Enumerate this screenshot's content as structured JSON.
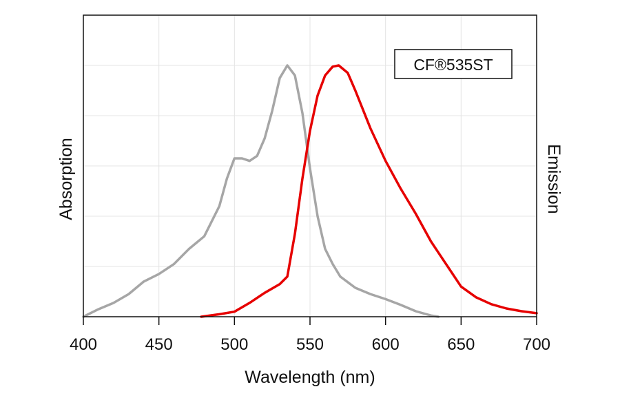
{
  "chart_data": {
    "type": "line",
    "title": "",
    "xlabel": "Wavelength (nm)",
    "ylabel_left": "Absorption",
    "ylabel_right": "Emission",
    "xlim": [
      400,
      700
    ],
    "ylim": [
      0,
      1.2
    ],
    "xticks": [
      400,
      450,
      500,
      550,
      600,
      650,
      700
    ],
    "y_gridlines": [
      0.2,
      0.4,
      0.6,
      0.8,
      1.0
    ],
    "grid": true,
    "legend_box": {
      "text": "CF®535ST",
      "placement": "top-right"
    },
    "series": [
      {
        "key": "absorption",
        "color": "#a6a6a6",
        "x": [
          400,
          410,
          420,
          430,
          440,
          450,
          460,
          470,
          480,
          490,
          495,
          500,
          505,
          510,
          515,
          520,
          525,
          530,
          535,
          540,
          545,
          550,
          555,
          560,
          565,
          570,
          580,
          590,
          600,
          610,
          620,
          630,
          635
        ],
        "y": [
          0,
          0.03,
          0.055,
          0.09,
          0.14,
          0.17,
          0.21,
          0.27,
          0.32,
          0.44,
          0.55,
          0.63,
          0.63,
          0.62,
          0.64,
          0.71,
          0.82,
          0.95,
          1.0,
          0.96,
          0.81,
          0.59,
          0.4,
          0.27,
          0.21,
          0.16,
          0.115,
          0.09,
          0.07,
          0.047,
          0.022,
          0.005,
          0
        ]
      },
      {
        "key": "emission",
        "color": "#e60000",
        "x": [
          478,
          490,
          500,
          510,
          520,
          530,
          535,
          540,
          545,
          550,
          555,
          560,
          565,
          569,
          575,
          580,
          590,
          600,
          610,
          620,
          630,
          640,
          650,
          660,
          670,
          680,
          690,
          700
        ],
        "y": [
          0,
          0.01,
          0.02,
          0.055,
          0.095,
          0.13,
          0.16,
          0.33,
          0.55,
          0.74,
          0.88,
          0.96,
          0.995,
          1.0,
          0.97,
          0.9,
          0.75,
          0.62,
          0.51,
          0.41,
          0.3,
          0.21,
          0.12,
          0.077,
          0.05,
          0.033,
          0.022,
          0.014
        ]
      }
    ]
  }
}
